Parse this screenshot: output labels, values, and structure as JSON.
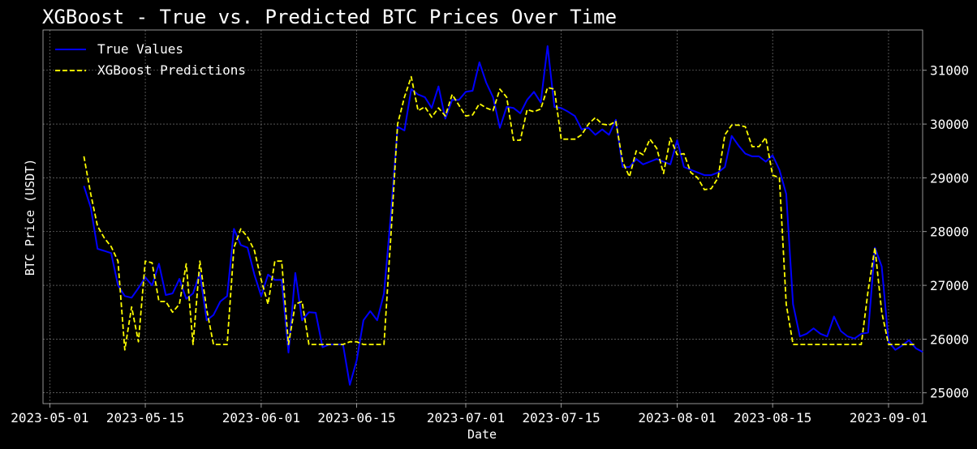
{
  "chart_data": {
    "type": "line",
    "title": "XGBoost - True vs. Predicted BTC Prices Over Time",
    "xlabel": "Date",
    "ylabel": "BTC Price (USDT)",
    "ylim": [
      24800,
      31750
    ],
    "xlim": [
      "2023-04-30",
      "2023-09-06"
    ],
    "y_ticks": [
      25000,
      26000,
      27000,
      28000,
      29000,
      30000,
      31000
    ],
    "x_ticks": [
      "2023-05-01",
      "2023-05-15",
      "2023-06-01",
      "2023-06-15",
      "2023-07-01",
      "2023-07-15",
      "2023-08-01",
      "2023-08-15",
      "2023-09-01"
    ],
    "y_axis_side": "right",
    "grid": true,
    "legend_position": "top-left",
    "series": [
      {
        "name": "True Values",
        "color": "#0000ff",
        "style": "solid",
        "points": [
          [
            "2023-05-06",
            28850
          ],
          [
            "2023-05-07",
            28450
          ],
          [
            "2023-05-08",
            27680
          ],
          [
            "2023-05-09",
            27640
          ],
          [
            "2023-05-10",
            27600
          ],
          [
            "2023-05-11",
            27000
          ],
          [
            "2023-05-12",
            26800
          ],
          [
            "2023-05-13",
            26770
          ],
          [
            "2023-05-14",
            26950
          ],
          [
            "2023-05-15",
            27150
          ],
          [
            "2023-05-16",
            27000
          ],
          [
            "2023-05-17",
            27400
          ],
          [
            "2023-05-18",
            26820
          ],
          [
            "2023-05-19",
            26850
          ],
          [
            "2023-05-20",
            27120
          ],
          [
            "2023-05-21",
            26750
          ],
          [
            "2023-05-22",
            26850
          ],
          [
            "2023-05-23",
            27230
          ],
          [
            "2023-05-24",
            26350
          ],
          [
            "2023-05-25",
            26450
          ],
          [
            "2023-05-26",
            26700
          ],
          [
            "2023-05-27",
            26800
          ],
          [
            "2023-05-28",
            28050
          ],
          [
            "2023-05-29",
            27750
          ],
          [
            "2023-05-30",
            27700
          ],
          [
            "2023-05-31",
            27200
          ],
          [
            "2023-06-01",
            26800
          ],
          [
            "2023-06-02",
            27200
          ],
          [
            "2023-06-03",
            27100
          ],
          [
            "2023-06-04",
            27100
          ],
          [
            "2023-06-05",
            25750
          ],
          [
            "2023-06-06",
            27230
          ],
          [
            "2023-06-07",
            26350
          ],
          [
            "2023-06-08",
            26500
          ],
          [
            "2023-06-09",
            26490
          ],
          [
            "2023-06-10",
            25850
          ],
          [
            "2023-06-11",
            25900
          ],
          [
            "2023-06-12",
            25900
          ],
          [
            "2023-06-13",
            25900
          ],
          [
            "2023-06-14",
            25150
          ],
          [
            "2023-06-15",
            25600
          ],
          [
            "2023-06-16",
            26350
          ],
          [
            "2023-06-17",
            26520
          ],
          [
            "2023-06-18",
            26350
          ],
          [
            "2023-06-19",
            26850
          ],
          [
            "2023-06-20",
            28300
          ],
          [
            "2023-06-21",
            29950
          ],
          [
            "2023-06-22",
            29880
          ],
          [
            "2023-06-23",
            30650
          ],
          [
            "2023-06-24",
            30550
          ],
          [
            "2023-06-25",
            30500
          ],
          [
            "2023-06-26",
            30300
          ],
          [
            "2023-06-27",
            30700
          ],
          [
            "2023-06-28",
            30100
          ],
          [
            "2023-06-29",
            30450
          ],
          [
            "2023-06-30",
            30450
          ],
          [
            "2023-07-01",
            30600
          ],
          [
            "2023-07-02",
            30620
          ],
          [
            "2023-07-03",
            31150
          ],
          [
            "2023-07-04",
            30770
          ],
          [
            "2023-07-05",
            30500
          ],
          [
            "2023-07-06",
            29930
          ],
          [
            "2023-07-07",
            30320
          ],
          [
            "2023-07-08",
            30300
          ],
          [
            "2023-07-09",
            30200
          ],
          [
            "2023-07-10",
            30450
          ],
          [
            "2023-07-11",
            30600
          ],
          [
            "2023-07-12",
            30400
          ],
          [
            "2023-07-13",
            31450
          ],
          [
            "2023-07-14",
            30320
          ],
          [
            "2023-07-15",
            30300
          ],
          [
            "2023-07-16",
            30230
          ],
          [
            "2023-07-17",
            30150
          ],
          [
            "2023-07-18",
            29900
          ],
          [
            "2023-07-19",
            29930
          ],
          [
            "2023-07-20",
            29800
          ],
          [
            "2023-07-21",
            29900
          ],
          [
            "2023-07-22",
            29800
          ],
          [
            "2023-07-23",
            30080
          ],
          [
            "2023-07-24",
            29200
          ],
          [
            "2023-07-25",
            29200
          ],
          [
            "2023-07-26",
            29350
          ],
          [
            "2023-07-27",
            29250
          ],
          [
            "2023-07-28",
            29300
          ],
          [
            "2023-07-29",
            29350
          ],
          [
            "2023-07-30",
            29300
          ],
          [
            "2023-07-31",
            29250
          ],
          [
            "2023-08-01",
            29700
          ],
          [
            "2023-08-02",
            29200
          ],
          [
            "2023-08-03",
            29150
          ],
          [
            "2023-08-04",
            29100
          ],
          [
            "2023-08-05",
            29050
          ],
          [
            "2023-08-06",
            29050
          ],
          [
            "2023-08-07",
            29100
          ],
          [
            "2023-08-08",
            29200
          ],
          [
            "2023-08-09",
            29780
          ],
          [
            "2023-08-10",
            29600
          ],
          [
            "2023-08-11",
            29450
          ],
          [
            "2023-08-12",
            29400
          ],
          [
            "2023-08-13",
            29400
          ],
          [
            "2023-08-14",
            29300
          ],
          [
            "2023-08-15",
            29420
          ],
          [
            "2023-08-16",
            29150
          ],
          [
            "2023-08-17",
            28700
          ],
          [
            "2023-08-18",
            26650
          ],
          [
            "2023-08-19",
            26050
          ],
          [
            "2023-08-20",
            26100
          ],
          [
            "2023-08-21",
            26200
          ],
          [
            "2023-08-22",
            26100
          ],
          [
            "2023-08-23",
            26050
          ],
          [
            "2023-08-24",
            26420
          ],
          [
            "2023-08-25",
            26150
          ],
          [
            "2023-08-26",
            26050
          ],
          [
            "2023-08-27",
            26010
          ],
          [
            "2023-08-28",
            26100
          ],
          [
            "2023-08-29",
            26120
          ],
          [
            "2023-08-30",
            27700
          ],
          [
            "2023-08-31",
            27350
          ],
          [
            "2023-09-01",
            25950
          ],
          [
            "2023-09-02",
            25800
          ],
          [
            "2023-09-03",
            25880
          ],
          [
            "2023-09-04",
            25980
          ],
          [
            "2023-09-05",
            25830
          ],
          [
            "2023-09-06",
            25760
          ]
        ]
      },
      {
        "name": "XGBoost Predictions",
        "color": "#ffff00",
        "style": "dashed",
        "points": [
          [
            "2023-05-06",
            29400
          ],
          [
            "2023-05-07",
            28700
          ],
          [
            "2023-05-08",
            28100
          ],
          [
            "2023-05-09",
            27880
          ],
          [
            "2023-05-10",
            27720
          ],
          [
            "2023-05-11",
            27450
          ],
          [
            "2023-05-12",
            25800
          ],
          [
            "2023-05-13",
            26600
          ],
          [
            "2023-05-14",
            25950
          ],
          [
            "2023-05-15",
            27450
          ],
          [
            "2023-05-16",
            27420
          ],
          [
            "2023-05-17",
            26700
          ],
          [
            "2023-05-18",
            26700
          ],
          [
            "2023-05-19",
            26500
          ],
          [
            "2023-05-20",
            26650
          ],
          [
            "2023-05-21",
            27400
          ],
          [
            "2023-05-22",
            25900
          ],
          [
            "2023-05-23",
            27450
          ],
          [
            "2023-05-24",
            26550
          ],
          [
            "2023-05-25",
            25900
          ],
          [
            "2023-05-26",
            25900
          ],
          [
            "2023-05-27",
            25900
          ],
          [
            "2023-05-28",
            27700
          ],
          [
            "2023-05-29",
            28050
          ],
          [
            "2023-05-30",
            27900
          ],
          [
            "2023-05-31",
            27650
          ],
          [
            "2023-06-01",
            27100
          ],
          [
            "2023-06-02",
            26650
          ],
          [
            "2023-06-03",
            27450
          ],
          [
            "2023-06-04",
            27450
          ],
          [
            "2023-06-05",
            25900
          ],
          [
            "2023-06-06",
            26650
          ],
          [
            "2023-06-07",
            26700
          ],
          [
            "2023-06-08",
            25900
          ],
          [
            "2023-06-09",
            25900
          ],
          [
            "2023-06-10",
            25900
          ],
          [
            "2023-06-11",
            25900
          ],
          [
            "2023-06-12",
            25900
          ],
          [
            "2023-06-13",
            25900
          ],
          [
            "2023-06-14",
            25950
          ],
          [
            "2023-06-15",
            25950
          ],
          [
            "2023-06-16",
            25900
          ],
          [
            "2023-06-17",
            25900
          ],
          [
            "2023-06-18",
            25900
          ],
          [
            "2023-06-19",
            25900
          ],
          [
            "2023-06-20",
            27900
          ],
          [
            "2023-06-21",
            30000
          ],
          [
            "2023-06-22",
            30500
          ],
          [
            "2023-06-23",
            30880
          ],
          [
            "2023-06-24",
            30250
          ],
          [
            "2023-06-25",
            30320
          ],
          [
            "2023-06-26",
            30130
          ],
          [
            "2023-06-27",
            30300
          ],
          [
            "2023-06-28",
            30150
          ],
          [
            "2023-06-29",
            30550
          ],
          [
            "2023-06-30",
            30350
          ],
          [
            "2023-07-01",
            30150
          ],
          [
            "2023-07-02",
            30170
          ],
          [
            "2023-07-03",
            30380
          ],
          [
            "2023-07-04",
            30300
          ],
          [
            "2023-07-05",
            30250
          ],
          [
            "2023-07-06",
            30650
          ],
          [
            "2023-07-07",
            30500
          ],
          [
            "2023-07-08",
            29700
          ],
          [
            "2023-07-09",
            29700
          ],
          [
            "2023-07-10",
            30270
          ],
          [
            "2023-07-11",
            30230
          ],
          [
            "2023-07-12",
            30280
          ],
          [
            "2023-07-13",
            30680
          ],
          [
            "2023-07-14",
            30650
          ],
          [
            "2023-07-15",
            29720
          ],
          [
            "2023-07-16",
            29720
          ],
          [
            "2023-07-17",
            29720
          ],
          [
            "2023-07-18",
            29800
          ],
          [
            "2023-07-19",
            30000
          ],
          [
            "2023-07-20",
            30120
          ],
          [
            "2023-07-21",
            30000
          ],
          [
            "2023-07-22",
            29980
          ],
          [
            "2023-07-23",
            30050
          ],
          [
            "2023-07-24",
            29300
          ],
          [
            "2023-07-25",
            29020
          ],
          [
            "2023-07-26",
            29500
          ],
          [
            "2023-07-27",
            29430
          ],
          [
            "2023-07-28",
            29720
          ],
          [
            "2023-07-29",
            29550
          ],
          [
            "2023-07-30",
            29080
          ],
          [
            "2023-07-31",
            29740
          ],
          [
            "2023-08-01",
            29430
          ],
          [
            "2023-08-02",
            29450
          ],
          [
            "2023-08-03",
            29100
          ],
          [
            "2023-08-04",
            29000
          ],
          [
            "2023-08-05",
            28780
          ],
          [
            "2023-08-06",
            28800
          ],
          [
            "2023-08-07",
            29000
          ],
          [
            "2023-08-08",
            29800
          ],
          [
            "2023-08-09",
            29980
          ],
          [
            "2023-08-10",
            29980
          ],
          [
            "2023-08-11",
            29950
          ],
          [
            "2023-08-12",
            29580
          ],
          [
            "2023-08-13",
            29580
          ],
          [
            "2023-08-14",
            29750
          ],
          [
            "2023-08-15",
            29050
          ],
          [
            "2023-08-16",
            29000
          ],
          [
            "2023-08-17",
            26650
          ],
          [
            "2023-08-18",
            25900
          ],
          [
            "2023-08-19",
            25900
          ],
          [
            "2023-08-20",
            25900
          ],
          [
            "2023-08-21",
            25900
          ],
          [
            "2023-08-22",
            25900
          ],
          [
            "2023-08-23",
            25900
          ],
          [
            "2023-08-24",
            25900
          ],
          [
            "2023-08-25",
            25900
          ],
          [
            "2023-08-26",
            25900
          ],
          [
            "2023-08-27",
            25900
          ],
          [
            "2023-08-28",
            25900
          ],
          [
            "2023-08-29",
            26900
          ],
          [
            "2023-08-30",
            27700
          ],
          [
            "2023-08-31",
            26500
          ],
          [
            "2023-09-01",
            25900
          ],
          [
            "2023-09-02",
            25900
          ],
          [
            "2023-09-03",
            25900
          ],
          [
            "2023-09-04",
            25900
          ],
          [
            "2023-09-05",
            25900
          ]
        ]
      }
    ]
  }
}
